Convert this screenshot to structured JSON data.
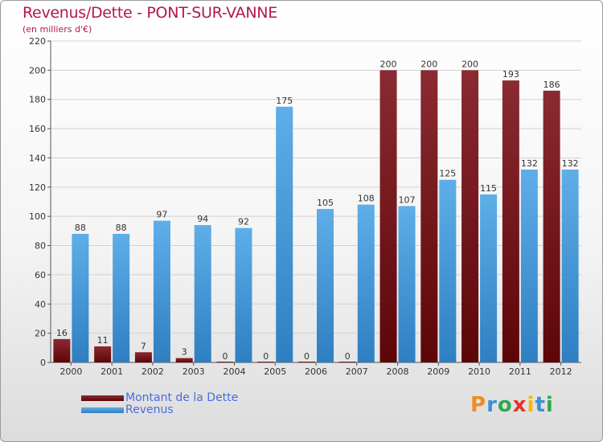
{
  "title": "Revenus/Dette - PONT-SUR-VANNE",
  "subtitle": "(en milliers d'€)",
  "colors": {
    "dette": "#7a1a22",
    "revenus": "#3d8fd1",
    "title": "#b3184a",
    "legend_text": "#4a6ce0"
  },
  "legend": {
    "dette_label": "Montant de la Dette",
    "revenus_label": "Revenus"
  },
  "logo": {
    "text": "Proxiti",
    "letters": [
      "P",
      "r",
      "o",
      "x",
      "i",
      "t",
      "i"
    ]
  },
  "chart_data": {
    "type": "bar",
    "title": "Revenus/Dette - PONT-SUR-VANNE",
    "ylabel": "(en milliers d'€)",
    "xlabel": "",
    "categories": [
      "2000",
      "2001",
      "2002",
      "2003",
      "2004",
      "2005",
      "2006",
      "2007",
      "2008",
      "2009",
      "2010",
      "2011",
      "2012"
    ],
    "series": [
      {
        "name": "Montant de la Dette",
        "values": [
          16,
          11,
          7,
          3,
          0,
          0,
          0,
          0,
          200,
          200,
          200,
          193,
          186
        ]
      },
      {
        "name": "Revenus",
        "values": [
          88,
          88,
          97,
          94,
          92,
          175,
          105,
          108,
          107,
          125,
          115,
          132,
          132
        ]
      }
    ],
    "ylim": [
      0,
      220
    ],
    "yticks": [
      0,
      20,
      40,
      60,
      80,
      100,
      120,
      140,
      160,
      180,
      200,
      220
    ],
    "grid": true,
    "legend_position": "bottom-left"
  }
}
